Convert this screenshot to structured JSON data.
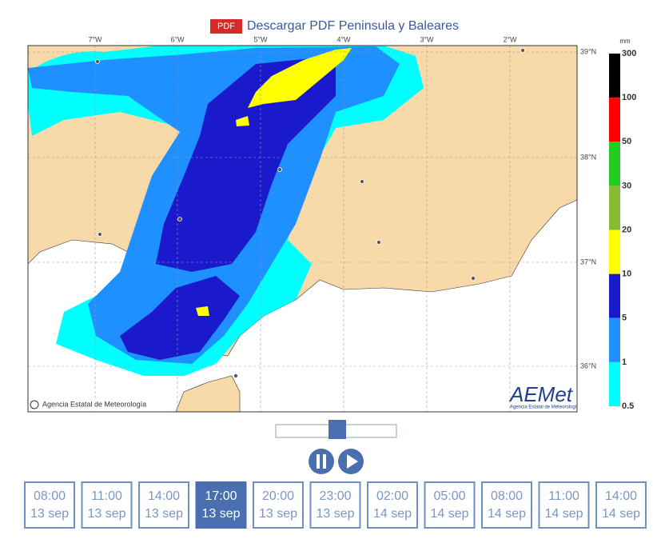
{
  "header": {
    "badge": "PDF",
    "title": "Descargar PDF Peninsula y Baleares"
  },
  "map": {
    "lon_labels": [
      "7°W",
      "6°W",
      "5°W",
      "4°W",
      "3°W",
      "2°W"
    ],
    "lat_labels": [
      "39°N",
      "38°N",
      "37°N",
      "36°N"
    ],
    "copyright": "Agencia Estatal de Meteorología",
    "logo": {
      "name": "AEMet",
      "subtitle": "Agencia Estatal de Meteorología"
    }
  },
  "legend": {
    "unit": "mm",
    "levels": [
      "300",
      "100",
      "50",
      "30",
      "20",
      "10",
      "5",
      "1",
      "0.5"
    ],
    "colors": [
      "#000000",
      "#ff0000",
      "#22cc22",
      "#88bb33",
      "#ffff00",
      "#1a1acc",
      "#1e90ff",
      "#00ffff"
    ]
  },
  "times": [
    {
      "time": "08:00",
      "date": "13 sep"
    },
    {
      "time": "11:00",
      "date": "13 sep"
    },
    {
      "time": "14:00",
      "date": "13 sep"
    },
    {
      "time": "17:00",
      "date": "13 sep"
    },
    {
      "time": "20:00",
      "date": "13 sep"
    },
    {
      "time": "23:00",
      "date": "13 sep"
    },
    {
      "time": "02:00",
      "date": "14 sep"
    },
    {
      "time": "05:00",
      "date": "14 sep"
    },
    {
      "time": "08:00",
      "date": "14 sep"
    },
    {
      "time": "11:00",
      "date": "14 sep"
    },
    {
      "time": "14:00",
      "date": "14 sep"
    }
  ],
  "active_time": 3
}
